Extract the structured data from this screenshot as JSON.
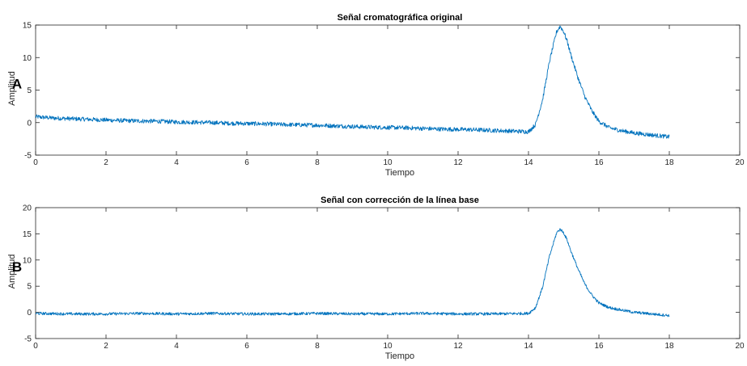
{
  "chart_data": [
    {
      "type": "line",
      "panel_letter": "A",
      "title": "Señal cromatográfica original",
      "xlabel": "Tiempo",
      "ylabel": "Amplitud",
      "xlim": [
        0,
        20
      ],
      "ylim": [
        -5,
        15
      ],
      "xticks": [
        0,
        2,
        4,
        6,
        8,
        10,
        12,
        14,
        16,
        18,
        20
      ],
      "yticks": [
        -5,
        0,
        5,
        10,
        15
      ],
      "grid": false,
      "color": "#0072BD",
      "series": [
        {
          "x": [
            0,
            0.5,
            1,
            1.5,
            2,
            2.5,
            3,
            3.5,
            4,
            4.5,
            5,
            5.5,
            6,
            6.5,
            7,
            7.5,
            8,
            8.5,
            9,
            9.5,
            10,
            10.5,
            11,
            11.5,
            12,
            12.5,
            13,
            13.5,
            14,
            14.2,
            14.4,
            14.6,
            14.8,
            14.9,
            15.0,
            15.1,
            15.2,
            15.4,
            15.6,
            15.8,
            16.0,
            16.3,
            16.6,
            17.0,
            17.5,
            18.0
          ],
          "y": [
            0.9,
            0.7,
            0.6,
            0.5,
            0.4,
            0.3,
            0.25,
            0.2,
            0.1,
            0.05,
            0.0,
            -0.1,
            -0.15,
            -0.2,
            -0.3,
            -0.35,
            -0.4,
            -0.5,
            -0.6,
            -0.7,
            -0.75,
            -0.8,
            -0.9,
            -1.0,
            -1.05,
            -1.1,
            -1.2,
            -1.3,
            -1.4,
            -0.3,
            3.5,
            9.5,
            14.0,
            14.8,
            14.0,
            12.5,
            10.5,
            7.0,
            4.0,
            1.8,
            0.2,
            -0.8,
            -1.2,
            -1.6,
            -1.9,
            -2.2
          ]
        }
      ]
    },
    {
      "type": "line",
      "panel_letter": "B",
      "title": "Señal con corrección de la línea base",
      "xlabel": "Tiempo",
      "ylabel": "Amplitud",
      "xlim": [
        0,
        20
      ],
      "ylim": [
        -5,
        20
      ],
      "xticks": [
        0,
        2,
        4,
        6,
        8,
        10,
        12,
        14,
        16,
        18,
        20
      ],
      "yticks": [
        -5,
        0,
        5,
        10,
        15,
        20
      ],
      "grid": false,
      "color": "#0072BD",
      "series": [
        {
          "x": [
            0,
            1,
            2,
            3,
            4,
            5,
            6,
            7,
            8,
            9,
            10,
            11,
            12,
            13,
            14,
            14.2,
            14.4,
            14.6,
            14.8,
            14.9,
            15.0,
            15.1,
            15.2,
            15.4,
            15.6,
            15.8,
            16.0,
            16.3,
            16.6,
            17.0,
            17.5,
            18.0
          ],
          "y": [
            -0.2,
            -0.3,
            -0.3,
            -0.2,
            -0.3,
            -0.2,
            -0.3,
            -0.3,
            -0.2,
            -0.3,
            -0.3,
            -0.2,
            -0.3,
            -0.3,
            -0.2,
            0.9,
            4.8,
            10.8,
            15.2,
            15.9,
            15.2,
            13.8,
            11.8,
            8.4,
            5.4,
            3.3,
            1.8,
            0.9,
            0.5,
            0.0,
            -0.3,
            -0.6
          ]
        }
      ]
    }
  ]
}
